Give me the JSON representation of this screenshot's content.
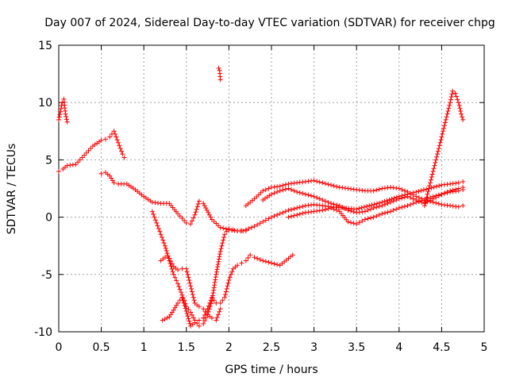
{
  "chart_data": {
    "type": "scatter",
    "title": "Day 007 of 2024, Sidereal Day-to-day VTEC variation (SDTVAR) for receiver chpg",
    "xlabel": "GPS time / hours",
    "ylabel": "SDTVAR / TECUs",
    "xlim": [
      0,
      5
    ],
    "ylim": [
      -10,
      15
    ],
    "xticks": [
      "0",
      "0.5",
      "1",
      "1.5",
      "2",
      "2.5",
      "3",
      "3.5",
      "4",
      "4.5",
      "5"
    ],
    "yticks": [
      "-10",
      "-5",
      "0",
      "5",
      "10",
      "15"
    ],
    "grid": true,
    "marker": "+",
    "color": "#ff0000",
    "series": [
      {
        "name": "s1",
        "x": [
          0.0,
          0.05,
          0.1,
          0.2,
          0.3,
          0.4,
          0.5,
          0.55,
          0.6,
          0.65,
          0.7,
          0.75,
          0.77
        ],
        "y": [
          4.0,
          4.2,
          4.5,
          4.6,
          5.4,
          6.2,
          6.7,
          6.8,
          7.0,
          7.5,
          6.5,
          5.5,
          5.2
        ]
      },
      {
        "name": "s2",
        "x": [
          0.0,
          0.02,
          0.04,
          0.06,
          0.08,
          0.1
        ],
        "y": [
          8.5,
          9.2,
          10.0,
          10.3,
          9.0,
          8.3
        ]
      },
      {
        "name": "s3",
        "x": [
          0.5,
          0.55,
          0.6,
          0.65,
          0.7,
          0.8,
          0.9,
          1.0,
          1.1,
          1.2,
          1.3,
          1.4,
          1.5,
          1.55,
          1.6,
          1.65,
          1.7,
          1.8,
          1.9,
          2.0,
          2.1,
          2.2
        ],
        "y": [
          3.8,
          3.9,
          3.6,
          3.0,
          2.9,
          2.9,
          2.4,
          1.8,
          1.3,
          1.2,
          1.2,
          0.3,
          -0.5,
          -0.6,
          0.2,
          1.4,
          1.2,
          -0.2,
          -0.9,
          -1.1,
          -1.2,
          -1.2
        ]
      },
      {
        "name": "s4",
        "x": [
          1.88,
          1.89,
          1.9
        ],
        "y": [
          13.0,
          12.8,
          12.0
        ]
      },
      {
        "name": "s5",
        "x": [
          1.1,
          1.15,
          1.2,
          1.25,
          1.3,
          1.35,
          1.4,
          1.45,
          1.5,
          1.55,
          1.6,
          1.65,
          1.7,
          1.75,
          1.8,
          1.85,
          1.9,
          1.95,
          2.0,
          2.05,
          2.1,
          2.15,
          2.2,
          2.3,
          2.4,
          2.5,
          2.6,
          2.7,
          2.8,
          2.9,
          3.0,
          3.2,
          3.5,
          3.8,
          4.0,
          4.2,
          4.5,
          4.7,
          4.75
        ],
        "y": [
          0.5,
          -0.5,
          -1.5,
          -2.5,
          -3.8,
          -5.0,
          -5.8,
          -6.8,
          -7.8,
          -8.3,
          -9.0,
          -9.5,
          -9.3,
          -8.5,
          -7.3,
          -5.0,
          -3.0,
          -1.5,
          -1.0,
          -1.1,
          -1.2,
          -1.2,
          -1.1,
          -0.8,
          -0.4,
          0.0,
          0.3,
          0.6,
          0.8,
          1.0,
          1.1,
          0.9,
          0.7,
          1.3,
          1.8,
          2.2,
          2.8,
          3.0,
          3.1
        ]
      },
      {
        "name": "s6",
        "x": [
          1.2,
          1.25,
          1.3,
          1.35,
          1.4,
          1.45,
          1.5,
          1.55,
          1.6,
          1.65,
          1.7,
          1.75,
          1.8,
          1.85,
          1.9
        ],
        "y": [
          -3.8,
          -3.5,
          -3.6,
          -4.3,
          -4.6,
          -4.5,
          -4.5,
          -6.0,
          -7.5,
          -7.8,
          -8.0,
          -8.5,
          -8.8,
          -9.0,
          -8.0
        ]
      },
      {
        "name": "s7",
        "x": [
          1.22,
          1.3,
          1.4,
          1.45,
          1.5,
          1.55,
          1.6,
          1.65,
          1.7,
          1.75,
          1.8,
          1.85,
          1.9,
          1.95,
          2.0,
          2.05,
          2.1,
          2.15,
          2.2,
          2.25,
          2.3,
          2.4,
          2.5,
          2.6,
          2.7,
          2.75
        ],
        "y": [
          -9.0,
          -8.7,
          -7.5,
          -7.0,
          -8.2,
          -9.5,
          -9.2,
          -9.0,
          -8.8,
          -8.0,
          -7.0,
          -7.5,
          -7.5,
          -7.0,
          -5.5,
          -4.5,
          -4.2,
          -4.0,
          -3.8,
          -3.3,
          -3.5,
          -3.8,
          -4.0,
          -4.2,
          -3.6,
          -3.3
        ]
      },
      {
        "name": "s8",
        "x": [
          2.2,
          2.3,
          2.4,
          2.5,
          2.6,
          2.7,
          2.8,
          2.9,
          3.0,
          3.1,
          3.2,
          3.3,
          3.4,
          3.5,
          3.6,
          3.7,
          3.8,
          3.9,
          4.0,
          4.1,
          4.2,
          4.3,
          4.4,
          4.5,
          4.6,
          4.7,
          4.75
        ],
        "y": [
          1.0,
          1.6,
          2.3,
          2.6,
          2.7,
          2.9,
          3.0,
          3.1,
          3.2,
          3.0,
          2.8,
          2.6,
          2.5,
          2.4,
          2.3,
          2.3,
          2.5,
          2.6,
          2.5,
          2.2,
          1.8,
          1.5,
          1.3,
          1.1,
          1.0,
          0.9,
          1.0
        ]
      },
      {
        "name": "s9",
        "x": [
          2.4,
          2.5,
          2.6,
          2.7,
          2.8,
          2.9,
          3.0,
          3.1,
          3.2,
          3.3,
          3.4,
          3.5,
          3.6,
          3.7,
          3.8,
          3.9,
          4.0,
          4.1,
          4.2,
          4.3,
          4.4,
          4.5,
          4.6,
          4.7,
          4.75
        ],
        "y": [
          1.5,
          2.0,
          2.3,
          2.5,
          2.2,
          2.0,
          1.8,
          1.5,
          1.2,
          1.0,
          0.6,
          0.4,
          0.5,
          0.8,
          1.0,
          1.3,
          1.6,
          1.8,
          1.5,
          1.2,
          1.6,
          2.0,
          2.3,
          2.5,
          2.6
        ]
      },
      {
        "name": "s10",
        "x": [
          2.7,
          2.8,
          2.9,
          3.0,
          3.1,
          3.2,
          3.3,
          3.4,
          3.5,
          3.6,
          3.7,
          3.8,
          3.9,
          4.0,
          4.1,
          4.2,
          4.3,
          4.4,
          4.5,
          4.6,
          4.7,
          4.75
        ],
        "y": [
          0.0,
          0.2,
          0.4,
          0.5,
          0.6,
          0.8,
          0.5,
          -0.4,
          -0.6,
          -0.2,
          0.0,
          0.3,
          0.5,
          0.8,
          1.0,
          1.3,
          1.5,
          1.8,
          2.0,
          2.2,
          2.3,
          2.4
        ]
      },
      {
        "name": "s11",
        "x": [
          4.3,
          4.35,
          4.4,
          4.45,
          4.5,
          4.55,
          4.6,
          4.63,
          4.66,
          4.7,
          4.73,
          4.75
        ],
        "y": [
          1.0,
          2.5,
          4.0,
          5.5,
          7.0,
          8.5,
          10.0,
          11.0,
          10.8,
          10.0,
          9.0,
          8.5
        ]
      }
    ]
  }
}
